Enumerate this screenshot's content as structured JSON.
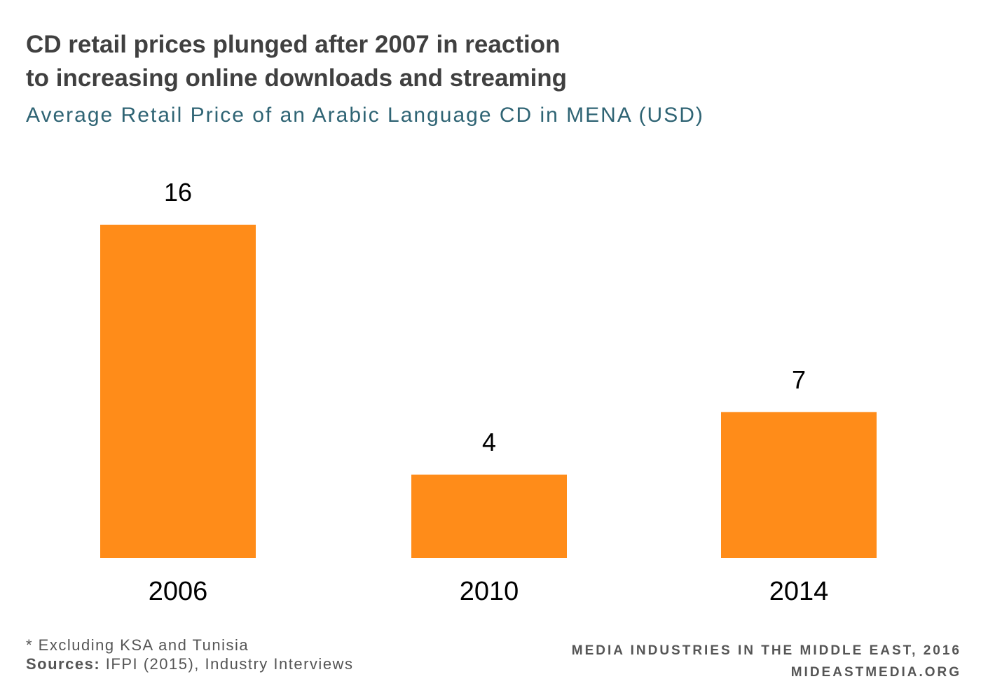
{
  "title_line1": "CD retail prices plunged after 2007 in reaction",
  "title_line2": "to increasing online downloads and streaming",
  "subtitle": "Average Retail Price of an Arabic Language CD in MENA (USD)",
  "footnote": "* Excluding KSA and Tunisia",
  "sources_label": "Sources:",
  "sources_text": " IFPI (2015), Industry Interviews",
  "credit_line1": "MEDIA INDUSTRIES IN THE MIDDLE EAST, 2016",
  "credit_line2": "MIDEASTMEDIA.ORG",
  "colors": {
    "bar": "#FF8C19",
    "title": "#404040",
    "subtitle": "#2F6474"
  },
  "chart_data": {
    "type": "bar",
    "title": "CD retail prices plunged after 2007 in reaction to increasing online downloads and streaming",
    "subtitle": "Average Retail Price of an Arabic Language CD in MENA (USD)",
    "categories": [
      "2006",
      "2010",
      "2014"
    ],
    "values": [
      16,
      4,
      7
    ],
    "data_labels": [
      "16",
      "4",
      "7"
    ],
    "xlabel": "",
    "ylabel": "",
    "ylim": [
      0,
      16
    ],
    "grid": false,
    "legend": "none"
  }
}
